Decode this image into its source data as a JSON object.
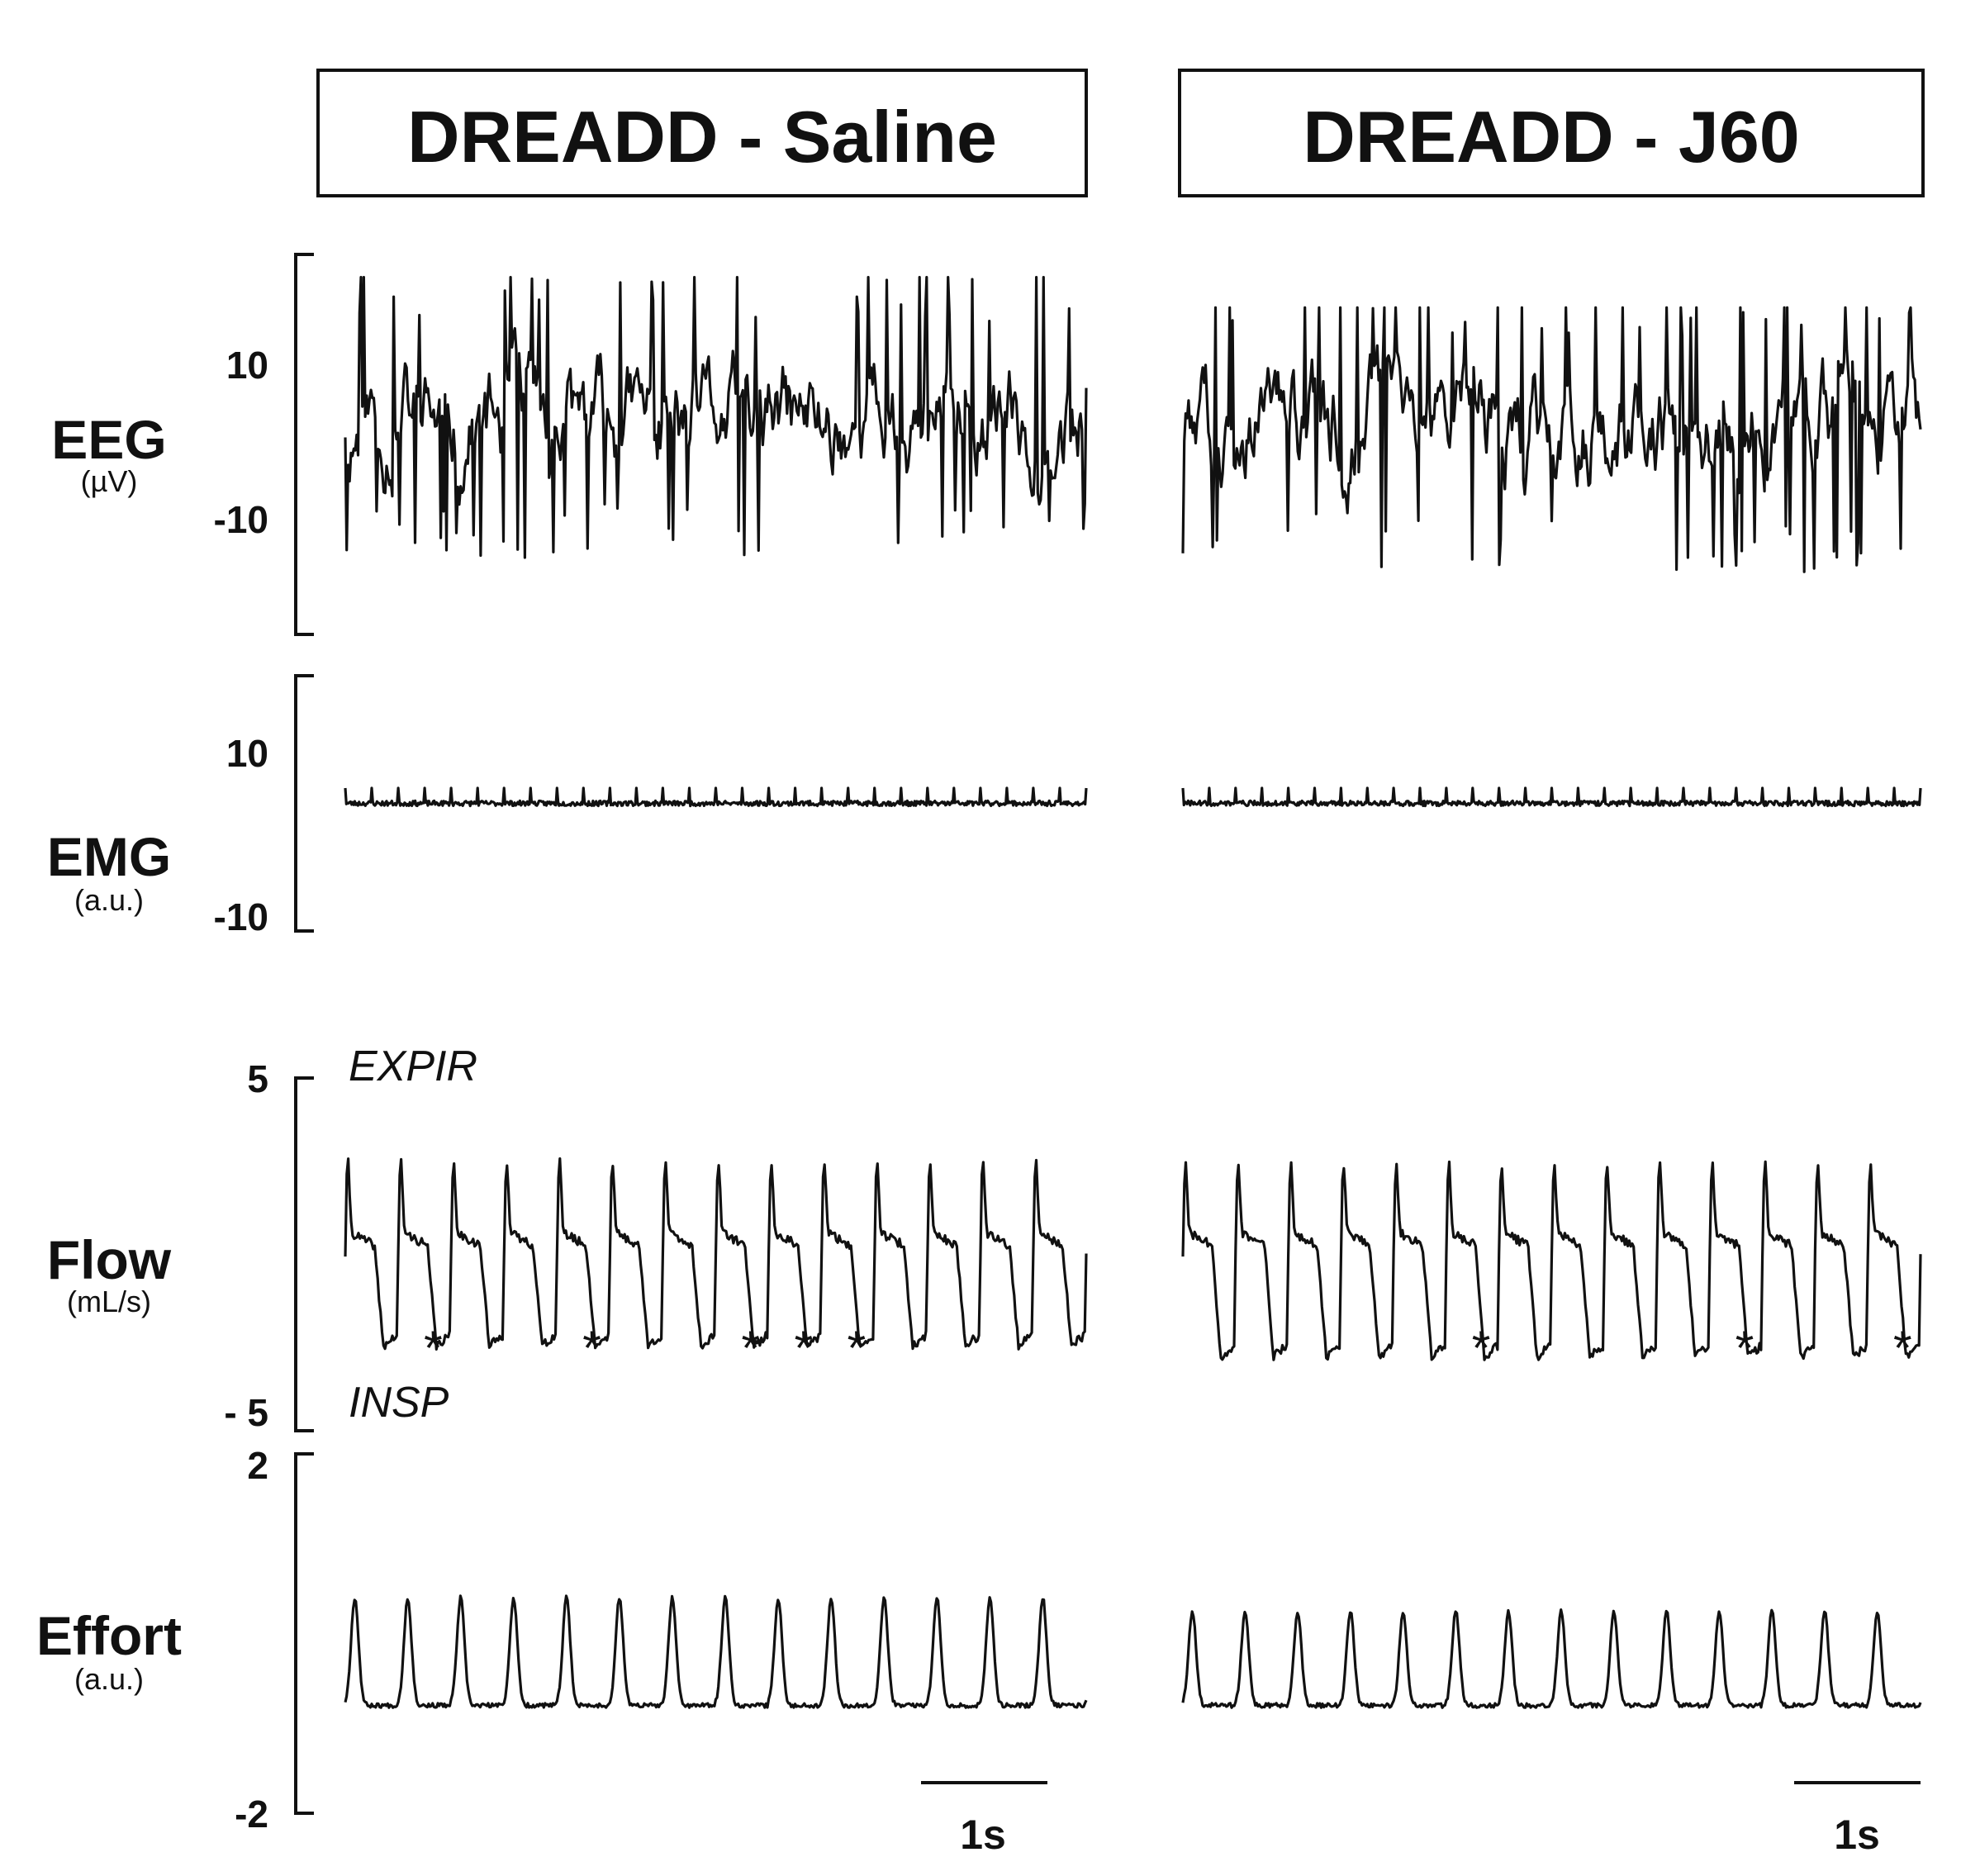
{
  "panels": [
    {
      "title": "DREADD - Saline"
    },
    {
      "title": "DREADD - J60"
    }
  ],
  "channels": [
    {
      "name": "EEG",
      "unit": "(µV)",
      "ticks": [
        "10",
        "-10"
      ]
    },
    {
      "name": "EMG",
      "unit": "(a.u.)",
      "ticks": [
        "10",
        "-10"
      ]
    },
    {
      "name": "Flow",
      "unit": "(mL/s)",
      "ticks": [
        "5",
        "- 5"
      ],
      "annot_top": "EXPIR",
      "annot_bottom": "INSP"
    },
    {
      "name": "Effort",
      "unit": "(a.u.)",
      "ticks": [
        "2",
        "-2"
      ]
    }
  ],
  "scale_bar": {
    "label": "1s"
  },
  "asterisk": "*",
  "colors": {
    "trace": "#111111",
    "background": "#ffffff"
  },
  "chart_data": [
    {
      "type": "line",
      "title": "DREADD - Saline",
      "xlabel": "",
      "ylabel": "",
      "duration_s": 5.8,
      "scale_bar_s": 1,
      "series": [
        {
          "name": "EEG",
          "unit": "µV",
          "ylim": [
            -25,
            25
          ],
          "mean": 3,
          "peak_range": [
            -18,
            22
          ]
        },
        {
          "name": "EMG",
          "unit": "a.u.",
          "ylim": [
            -15,
            15
          ],
          "mean": 0,
          "beat_count": 28
        },
        {
          "name": "Flow",
          "unit": "mL/s",
          "ylim": [
            -5,
            5
          ],
          "breath_count": 14,
          "expiratory_peak": 3.1,
          "inspiratory_trough": -2.6,
          "apnea_marks_breath_index": [
            1,
            4,
            7,
            8,
            9
          ]
        },
        {
          "name": "Effort",
          "unit": "a.u.",
          "ylim": [
            -2,
            2
          ],
          "breath_count": 14,
          "peak": 0.4,
          "trough": -0.8
        }
      ]
    },
    {
      "type": "line",
      "title": "DREADD - J60",
      "xlabel": "",
      "ylabel": "",
      "duration_s": 5.8,
      "scale_bar_s": 1,
      "series": [
        {
          "name": "EEG",
          "unit": "µV",
          "ylim": [
            -25,
            25
          ],
          "mean": 3,
          "peak_range": [
            -20,
            18
          ]
        },
        {
          "name": "EMG",
          "unit": "a.u.",
          "ylim": [
            -15,
            15
          ],
          "mean": 0,
          "beat_count": 28
        },
        {
          "name": "Flow",
          "unit": "mL/s",
          "ylim": [
            -5,
            5
          ],
          "breath_count": 14,
          "expiratory_peak": 3.0,
          "inspiratory_trough": -2.9,
          "apnea_marks_breath_index": [
            5,
            10,
            13
          ]
        },
        {
          "name": "Effort",
          "unit": "a.u.",
          "ylim": [
            -2,
            2
          ],
          "breath_count": 14,
          "peak": 0.25,
          "trough": -0.8
        }
      ]
    }
  ]
}
